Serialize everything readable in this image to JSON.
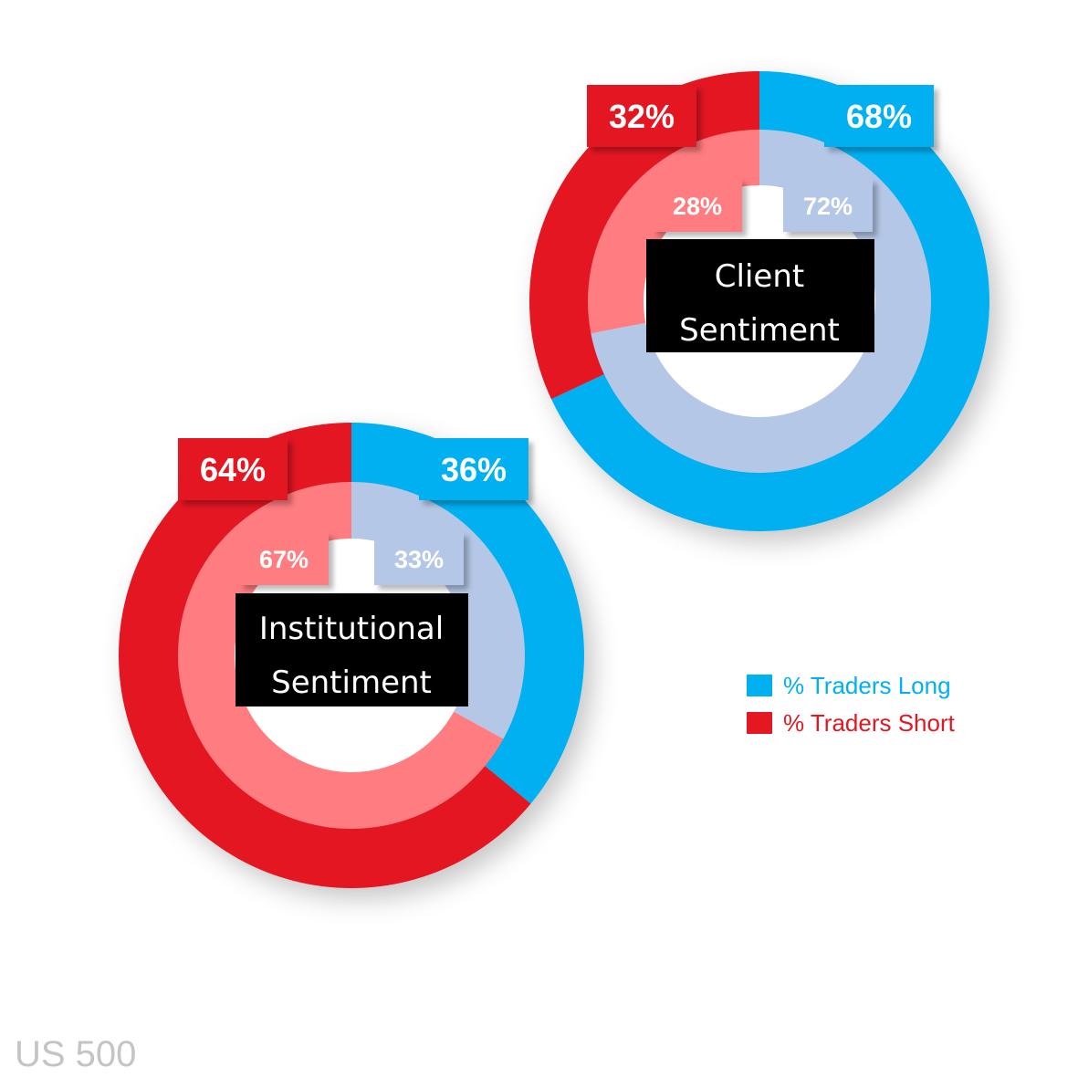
{
  "footer": "US 500",
  "legend": [
    {
      "label": "% Traders Long",
      "color": "#00b0f0"
    },
    {
      "label": "% Traders Short",
      "color": "#e31820"
    }
  ],
  "colors": {
    "long_outer": "#00b0f0",
    "short_outer": "#e31820",
    "long_inner": "#b4c7e7",
    "short_inner": "#ff7c80",
    "center_fill": "#000000"
  },
  "chart_data": [
    {
      "type": "pie",
      "title": "Client Sentiment",
      "title_lines": [
        "Client",
        "Sentiment"
      ],
      "rings": [
        {
          "ring": "outer",
          "values": [
            68,
            32
          ],
          "labels": [
            "68%",
            "32%"
          ],
          "series": [
            "% Traders Long",
            "% Traders Short"
          ]
        },
        {
          "ring": "inner",
          "values": [
            72,
            28
          ],
          "labels": [
            "72%",
            "28%"
          ],
          "series": [
            "% Traders Long",
            "% Traders Short"
          ]
        }
      ]
    },
    {
      "type": "pie",
      "title": "Institutional Sentiment",
      "title_lines": [
        "Institutional",
        "Sentiment"
      ],
      "rings": [
        {
          "ring": "outer",
          "values": [
            36,
            64
          ],
          "labels": [
            "36%",
            "64%"
          ],
          "series": [
            "% Traders Long",
            "% Traders Short"
          ]
        },
        {
          "ring": "inner",
          "values": [
            33,
            67
          ],
          "labels": [
            "33%",
            "67%"
          ],
          "series": [
            "% Traders Long",
            "% Traders Short"
          ]
        }
      ]
    }
  ]
}
